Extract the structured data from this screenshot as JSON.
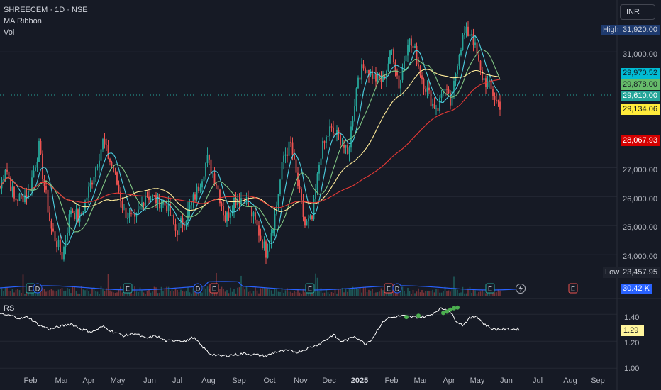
{
  "header": {
    "symbol_line": "SHREECEM · 1D · NSE",
    "ribbon_label": "MA Ribbon",
    "vol_label": "Vol"
  },
  "currency": "INR",
  "rs_label": "RS",
  "tags": {
    "high_label": "High",
    "high_value": "31,920.00",
    "low_label": "Low",
    "low_value": "23,457.95",
    "ma_values": [
      "29,970.52",
      "29,878.00",
      "29,610.00",
      "29,134.06",
      "28,067.93"
    ],
    "volume_value": "30.42 K",
    "rs_value": "1.29"
  },
  "colors": {
    "up": "#26a69a",
    "down": "#ef5350",
    "ma1": "#4dd0e1",
    "ma2": "#81c784",
    "ma3": "#ffeb99",
    "ma4": "#e53935",
    "vol_ma": "#2962ff",
    "rs": "#ffffff",
    "rs_high": "#4caf50",
    "tag_ma1": "#00bcd4",
    "tag_ma2": "#66bb6a",
    "tag_ma3": "#ffeb3b",
    "tag_ma4": "#d50000"
  },
  "chart_data": {
    "type": "candlestick",
    "y_axis_ticks": [
      "31,000.00",
      "27,000.00",
      "26,000.00",
      "25,000.00",
      "24,000.00"
    ],
    "y_axis_tick_values": [
      31000,
      27000,
      26000,
      25000,
      24000
    ],
    "ylim": [
      23000,
      32300
    ],
    "rs_axis_ticks": [
      "1.40",
      "1.20",
      "1.00"
    ],
    "rs_axis_tick_values": [
      1.4,
      1.2,
      1.0
    ],
    "rs_ylim": [
      0.97,
      1.47
    ],
    "x_axis_ticks": [
      "Feb",
      "Mar",
      "Apr",
      "May",
      "Jun",
      "Jul",
      "Aug",
      "Sep",
      "Oct",
      "Nov",
      "Dec",
      "2025",
      "Feb",
      "Mar",
      "Apr",
      "May",
      "Jun",
      "Jul",
      "Aug",
      "Sep"
    ],
    "price_keypoints": [
      [
        0,
        26300
      ],
      [
        8,
        27100
      ],
      [
        20,
        25900
      ],
      [
        40,
        26100
      ],
      [
        55,
        27700
      ],
      [
        60,
        26800
      ],
      [
        72,
        24900
      ],
      [
        88,
        23950
      ],
      [
        100,
        25600
      ],
      [
        112,
        25200
      ],
      [
        130,
        26600
      ],
      [
        145,
        27900
      ],
      [
        160,
        26900
      ],
      [
        175,
        25500
      ],
      [
        190,
        25100
      ],
      [
        205,
        26100
      ],
      [
        220,
        25900
      ],
      [
        235,
        25700
      ],
      [
        248,
        24800
      ],
      [
        262,
        25300
      ],
      [
        278,
        26200
      ],
      [
        292,
        27300
      ],
      [
        305,
        26500
      ],
      [
        318,
        25200
      ],
      [
        330,
        25900
      ],
      [
        345,
        26000
      ],
      [
        360,
        25100
      ],
      [
        375,
        24100
      ],
      [
        388,
        25400
      ],
      [
        400,
        27400
      ],
      [
        410,
        27800
      ],
      [
        422,
        26100
      ],
      [
        430,
        25000
      ],
      [
        440,
        25200
      ],
      [
        452,
        27500
      ],
      [
        465,
        28300
      ],
      [
        480,
        28000
      ],
      [
        490,
        27400
      ],
      [
        505,
        30200
      ],
      [
        515,
        30500
      ],
      [
        528,
        30100
      ],
      [
        540,
        30000
      ],
      [
        553,
        31100
      ],
      [
        563,
        29800
      ],
      [
        575,
        31450
      ],
      [
        585,
        31000
      ],
      [
        595,
        30100
      ],
      [
        610,
        29200
      ],
      [
        618,
        29100
      ],
      [
        625,
        29800
      ],
      [
        636,
        29150
      ],
      [
        646,
        30900
      ],
      [
        654,
        31600
      ],
      [
        665,
        31700
      ],
      [
        678,
        30200
      ],
      [
        690,
        29800
      ],
      [
        700,
        29300
      ],
      [
        706,
        29170
      ]
    ],
    "rs_keypoints": [
      [
        0,
        1.4
      ],
      [
        15,
        1.39
      ],
      [
        30,
        1.37
      ],
      [
        40,
        1.38
      ],
      [
        55,
        1.32
      ],
      [
        70,
        1.29
      ],
      [
        85,
        1.31
      ],
      [
        100,
        1.33
      ],
      [
        115,
        1.29
      ],
      [
        130,
        1.27
      ],
      [
        145,
        1.31
      ],
      [
        160,
        1.27
      ],
      [
        175,
        1.24
      ],
      [
        190,
        1.26
      ],
      [
        205,
        1.22
      ],
      [
        220,
        1.24
      ],
      [
        235,
        1.2
      ],
      [
        250,
        1.21
      ],
      [
        262,
        1.2
      ],
      [
        272,
        1.23
      ],
      [
        278,
        1.2
      ],
      [
        295,
        1.11
      ],
      [
        310,
        1.09
      ],
      [
        330,
        1.1
      ],
      [
        345,
        1.11
      ],
      [
        360,
        1.1
      ],
      [
        375,
        1.09
      ],
      [
        388,
        1.12
      ],
      [
        405,
        1.13
      ],
      [
        420,
        1.12
      ],
      [
        435,
        1.15
      ],
      [
        450,
        1.18
      ],
      [
        462,
        1.22
      ],
      [
        470,
        1.25
      ],
      [
        480,
        1.2
      ],
      [
        490,
        1.21
      ],
      [
        500,
        1.24
      ],
      [
        515,
        1.18
      ],
      [
        525,
        1.22
      ],
      [
        535,
        1.31
      ],
      [
        545,
        1.37
      ],
      [
        556,
        1.38
      ],
      [
        566,
        1.39
      ],
      [
        580,
        1.38
      ],
      [
        595,
        1.38
      ],
      [
        605,
        1.39
      ],
      [
        620,
        1.44
      ],
      [
        632,
        1.44
      ],
      [
        642,
        1.36
      ],
      [
        652,
        1.32
      ],
      [
        662,
        1.37
      ],
      [
        672,
        1.39
      ],
      [
        682,
        1.33
      ],
      [
        695,
        1.29
      ],
      [
        706,
        1.29
      ]
    ],
    "volume_level": 0.35,
    "annotations": [
      "E",
      "D"
    ]
  }
}
